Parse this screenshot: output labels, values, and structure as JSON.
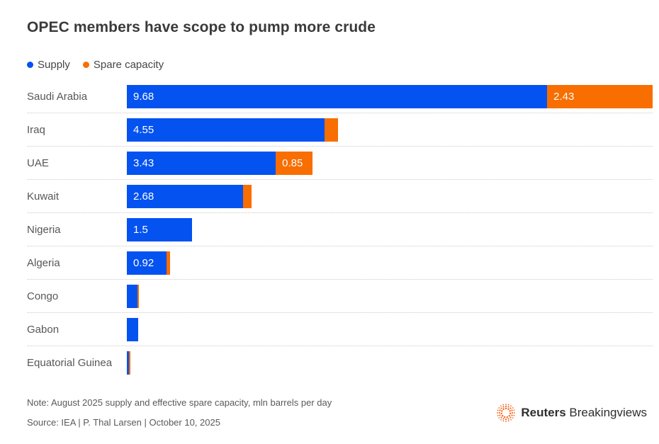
{
  "chart": {
    "title": "OPEC members have scope to pump more crude"
  },
  "chart_data": {
    "type": "bar",
    "orientation": "horizontal",
    "stacked": true,
    "title": "OPEC members have scope to pump more crude",
    "x_max": 12.11,
    "grid": false,
    "legend_position": "top-left",
    "categories": [
      "Saudi Arabia",
      "Iraq",
      "UAE",
      "Kuwait",
      "Nigeria",
      "Algeria",
      "Congo",
      "Gabon",
      "Equatorial Guinea"
    ],
    "series": [
      {
        "name": "Supply",
        "color": "#0452f0",
        "values": [
          9.68,
          4.55,
          3.43,
          2.68,
          1.5,
          0.92,
          0.25,
          0.26,
          0.05
        ],
        "value_labels": [
          "9.68",
          "4.55",
          "3.43",
          "2.68",
          "1.5",
          "0.92",
          "",
          "",
          ""
        ]
      },
      {
        "name": "Spare capacity",
        "color": "#f86e00",
        "values": [
          2.43,
          0.31,
          0.85,
          0.2,
          0,
          0.07,
          0.03,
          0,
          0.03
        ],
        "value_labels": [
          "2.43",
          "",
          "0.85",
          "",
          "",
          "",
          "",
          "",
          ""
        ]
      }
    ]
  },
  "footer": {
    "note": "Note: August 2025 supply and effective spare capacity, mln barrels per day",
    "source": "Source: IEA | P. Thal Larsen | October 10, 2025",
    "logo": {
      "bold": "Reuters",
      "regular": "Breakingviews",
      "dot_color": "#f75607"
    }
  }
}
